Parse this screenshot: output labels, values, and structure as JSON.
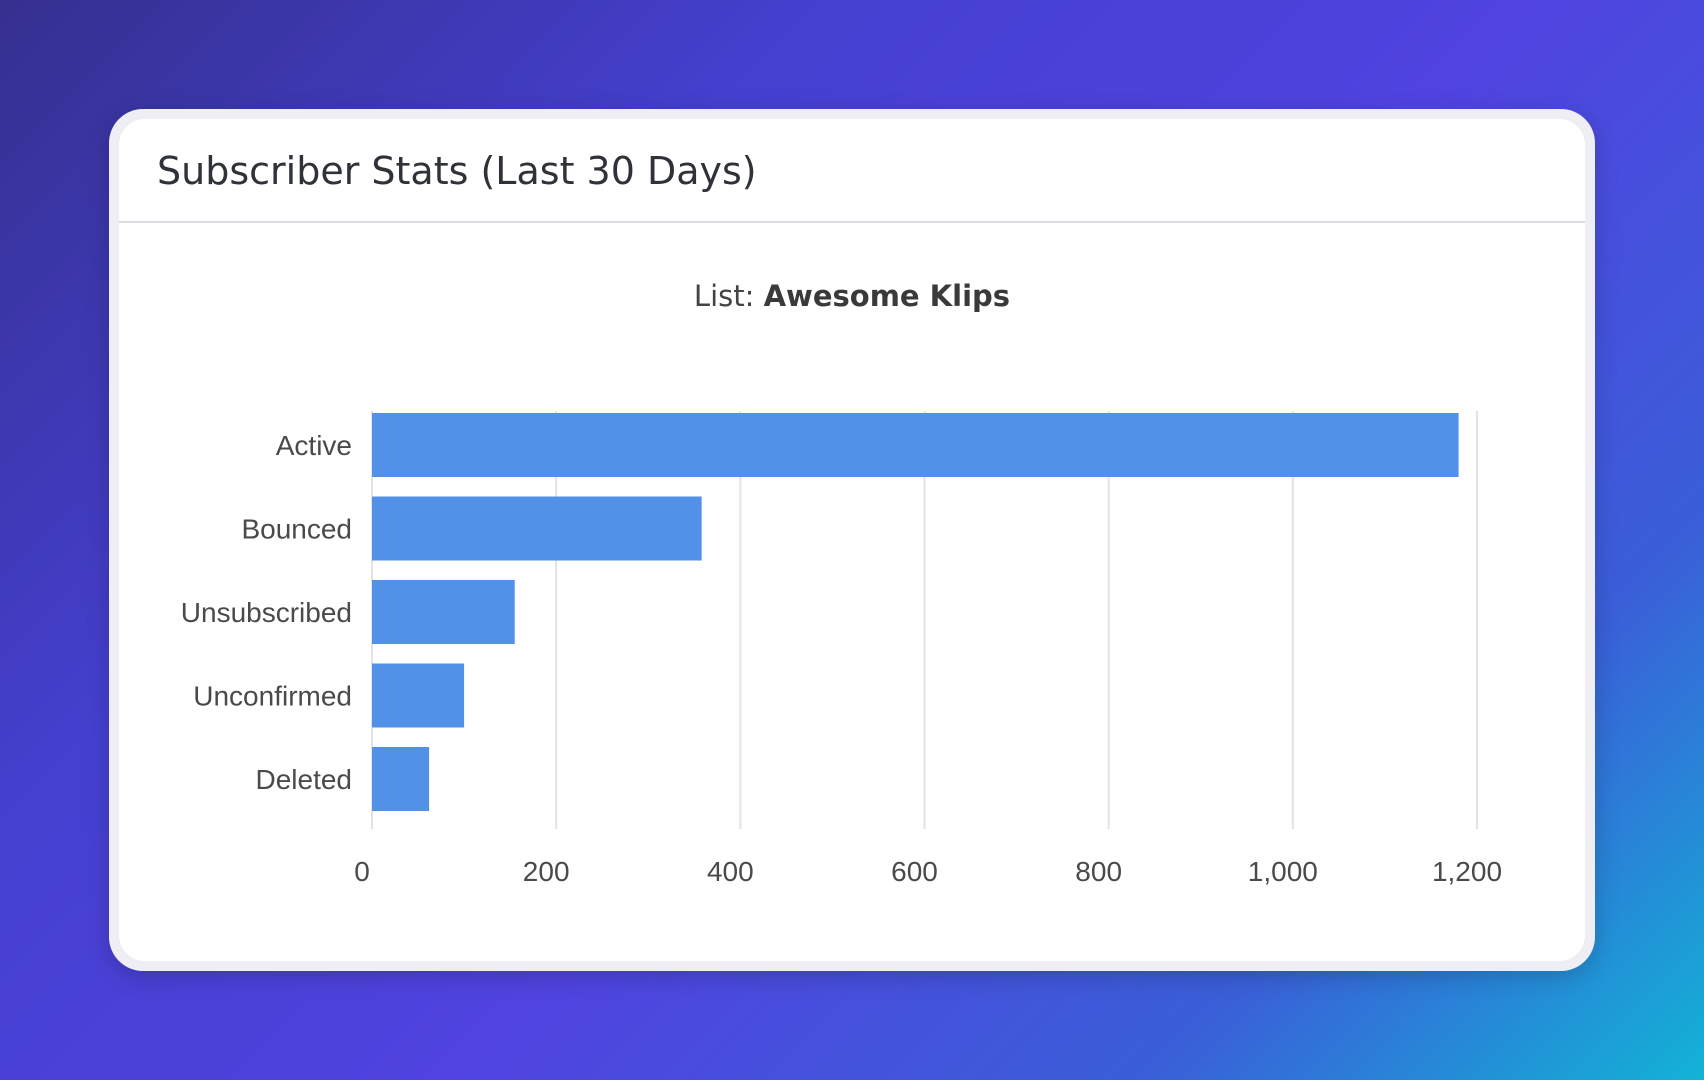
{
  "card": {
    "title": "Subscriber Stats (Last 30 Days)"
  },
  "chart_data": {
    "type": "bar",
    "orientation": "horizontal",
    "subtitle_prefix": "List:",
    "subtitle_value": "Awesome Klips",
    "categories": [
      "Active",
      "Bounced",
      "Unsubscribed",
      "Unconfirmed",
      "Deleted"
    ],
    "values": [
      1180,
      358,
      155,
      100,
      62
    ],
    "xlim": [
      0,
      1200
    ],
    "xticks": [
      0,
      200,
      400,
      600,
      800,
      1000,
      1200
    ],
    "xtick_labels": [
      "0",
      "200",
      "400",
      "600",
      "800",
      "1,000",
      "1,200"
    ],
    "grid": true,
    "bar_color": "#5291e8",
    "grid_color": "#e3e3e3"
  }
}
